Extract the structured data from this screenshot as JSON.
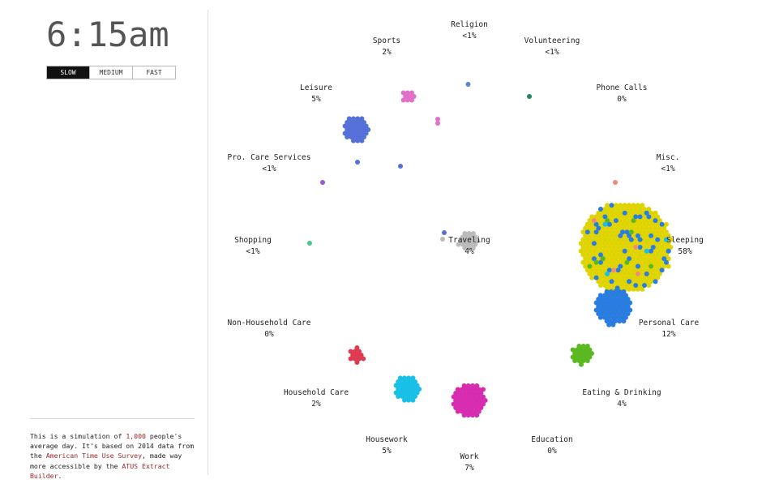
{
  "clock": "6:15am",
  "speed": {
    "options": [
      "SLOW",
      "MEDIUM",
      "FAST"
    ],
    "selected": "SLOW"
  },
  "intro": {
    "t1": "This is a simulation of ",
    "count": "1,000",
    "t2": " people's average day. It's based on 2014 data from the ",
    "link1": "American Time Use Survey",
    "t3": ", made way more accessible by the ",
    "link2": "ATUS Extract Builder",
    "t4": "."
  },
  "activities": [
    {
      "name": "Religion",
      "pct": "<1%",
      "color": "#5b84d6"
    },
    {
      "name": "Volunteering",
      "pct": "<1%",
      "color": "#1a8a5a"
    },
    {
      "name": "Phone Calls",
      "pct": "0%",
      "color": "#1a8a5a"
    },
    {
      "name": "Misc.",
      "pct": "<1%",
      "color": "#f08a7a"
    },
    {
      "name": "Sleeping",
      "pct": "58%",
      "color": "#e0d400"
    },
    {
      "name": "Personal Care",
      "pct": "12%",
      "color": "#2a7de0"
    },
    {
      "name": "Eating & Drinking",
      "pct": "4%",
      "color": "#5ab820"
    },
    {
      "name": "Education",
      "pct": "0%",
      "color": "#888888"
    },
    {
      "name": "Work",
      "pct": "7%",
      "color": "#d82cb0"
    },
    {
      "name": "Housework",
      "pct": "5%",
      "color": "#18c0e8"
    },
    {
      "name": "Household Care",
      "pct": "2%",
      "color": "#e03a50"
    },
    {
      "name": "Non-Household Care",
      "pct": "0%",
      "color": "#888888"
    },
    {
      "name": "Shopping",
      "pct": "<1%",
      "color": "#48c890"
    },
    {
      "name": "Pro. Care Services",
      "pct": "<1%",
      "color": "#9a5ac8"
    },
    {
      "name": "Leisure",
      "pct": "5%",
      "color": "#5570d8"
    },
    {
      "name": "Sports",
      "pct": "2%",
      "color": "#e070c8"
    },
    {
      "name": "Traveling",
      "pct": "4%",
      "color": "#bbbbbb"
    }
  ]
}
